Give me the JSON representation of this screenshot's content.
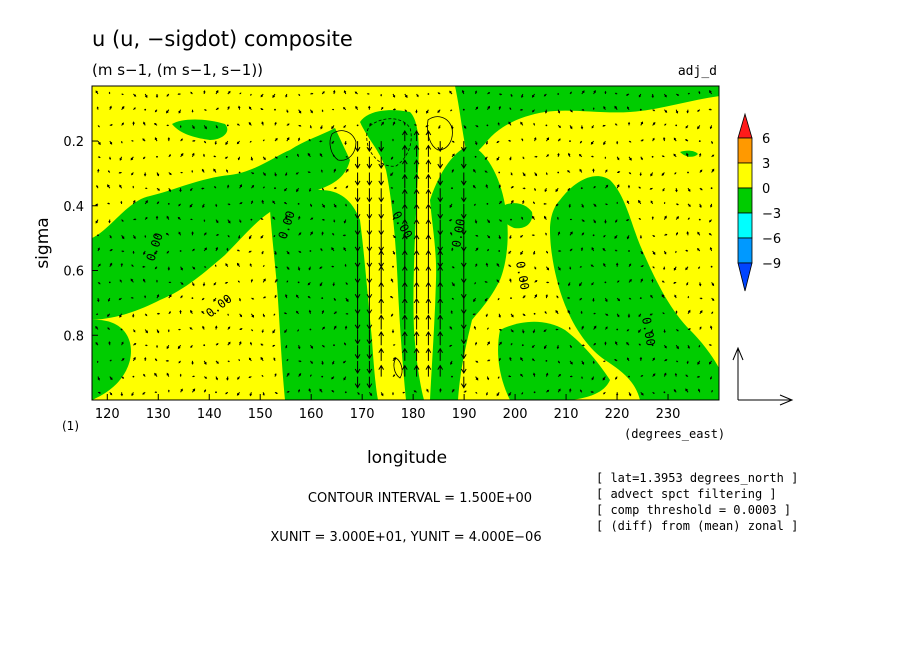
{
  "chart_data": {
    "type": "heatmap",
    "title": "u (u, −sigdot) composite",
    "subtitle": "(m s−1, (m s−1, s−1))",
    "dataset_tag": "adj_d",
    "xlabel": "longitude",
    "x_unit_label": "(degrees_east)",
    "ylabel": "sigma",
    "corner_label": "(1)",
    "xlim": [
      117,
      240
    ],
    "ylim": [
      0.03,
      1.0
    ],
    "y_inverted": true,
    "x_ticks": [
      "120",
      "130",
      "140",
      "150",
      "160",
      "170",
      "180",
      "190",
      "200",
      "210",
      "220",
      "230"
    ],
    "y_ticks": [
      "0.2",
      "0.4",
      "0.6",
      "0.8"
    ],
    "legend": {
      "levels": [
        "6",
        "3",
        "0",
        "−3",
        "−6",
        "−9"
      ],
      "colors": {
        "gt6": "#ff1a1a",
        "3to6": "#ff9900",
        "0to3": "#ffff00",
        "m3to0": "#00cc00",
        "m6tom3": "#00ffff",
        "m9tom6": "#0099ff",
        "lt_m9": "#0044ff"
      }
    },
    "contour_labels": [
      "0.00",
      "0.00",
      "0.00",
      "0.00",
      "0.00",
      "0.00",
      "0.00"
    ],
    "contour_interval_text": "CONTOUR INTERVAL = 1.500E+00",
    "vector_units_text": "XUNIT = 3.000E+01, YUNIT = 4.000E−06",
    "info_lines": [
      "[ lat=1.3953 degrees_north ]",
      "[ advect spct filtering ]",
      "[ comp threshold = 0.0003 ]",
      "[ (diff) from (mean) zonal ]"
    ]
  }
}
